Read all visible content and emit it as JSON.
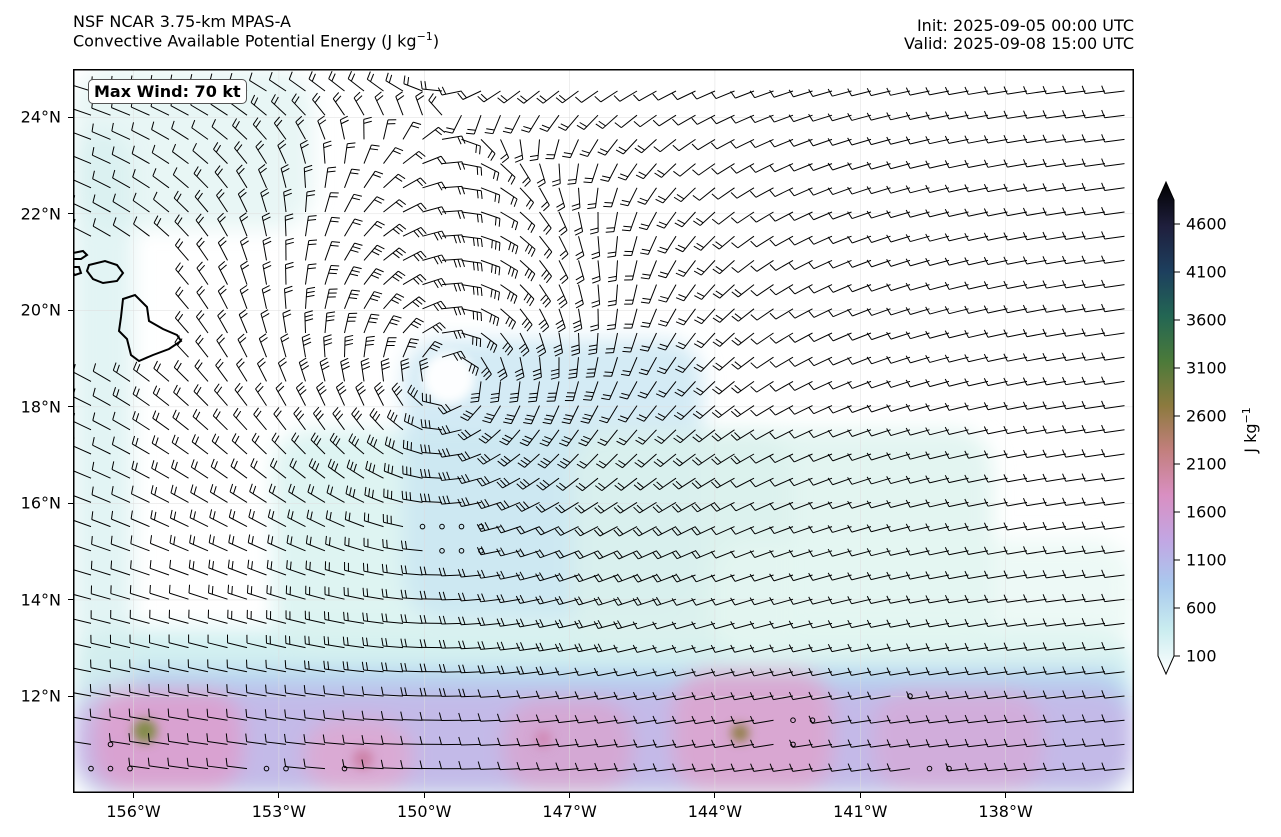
{
  "header": {
    "model": "NSF NCAR 3.75-km MPAS-A",
    "field_name": "Convective Available Potential Energy (J kg",
    "field_exp": "−1",
    "field_close": ")",
    "init": "Init: 2025-09-05 00:00 UTC",
    "valid": "Valid: 2025-09-08 15:00 UTC"
  },
  "annotation": {
    "max_wind": "Max Wind: 70 kt"
  },
  "map": {
    "lat_range": [
      10,
      25
    ],
    "lon_range": [
      -157.25,
      -135.35
    ],
    "lat_labels": [
      {
        "lat": 24,
        "text": "24°N"
      },
      {
        "lat": 22,
        "text": "22°N"
      },
      {
        "lat": 20,
        "text": "20°N"
      },
      {
        "lat": 18,
        "text": "18°N"
      },
      {
        "lat": 16,
        "text": "16°N"
      },
      {
        "lat": 14,
        "text": "14°N"
      },
      {
        "lat": 12,
        "text": "12°N"
      }
    ],
    "lon_labels": [
      {
        "lon": -156,
        "text": "156°W"
      },
      {
        "lon": -153,
        "text": "153°W"
      },
      {
        "lon": -150,
        "text": "150°W"
      },
      {
        "lon": -147,
        "text": "147°W"
      },
      {
        "lon": -144,
        "text": "144°W"
      },
      {
        "lon": -141,
        "text": "141°W"
      },
      {
        "lon": -138,
        "text": "138°W"
      }
    ],
    "cyclone_center": {
      "lat": 18.6,
      "lon": -149.5
    },
    "colors": {
      "land_outline": "#000000",
      "barb": "#000000",
      "frame": "#000000"
    }
  },
  "colorbar": {
    "unit_base": "J kg",
    "unit_exp": "−1",
    "min": 100,
    "max": 4850,
    "extend": "both",
    "ticks": [
      {
        "value": 4600,
        "text": "4600"
      },
      {
        "value": 4100,
        "text": "4100"
      },
      {
        "value": 3600,
        "text": "3600"
      },
      {
        "value": 3100,
        "text": "3100"
      },
      {
        "value": 2600,
        "text": "2600"
      },
      {
        "value": 2100,
        "text": "2100"
      },
      {
        "value": 1600,
        "text": "1600"
      },
      {
        "value": 1100,
        "text": "1100"
      },
      {
        "value": 600,
        "text": "600"
      },
      {
        "value": 100,
        "text": "100"
      }
    ],
    "colormap": [
      "#ffffff",
      "#c9ecef",
      "#a9c9ee",
      "#c2a6e3",
      "#d98fc2",
      "#c27f7d",
      "#8c7a3e",
      "#4b7a3a",
      "#236653",
      "#1d3f5e",
      "#1f1f3d",
      "#000000"
    ]
  }
}
